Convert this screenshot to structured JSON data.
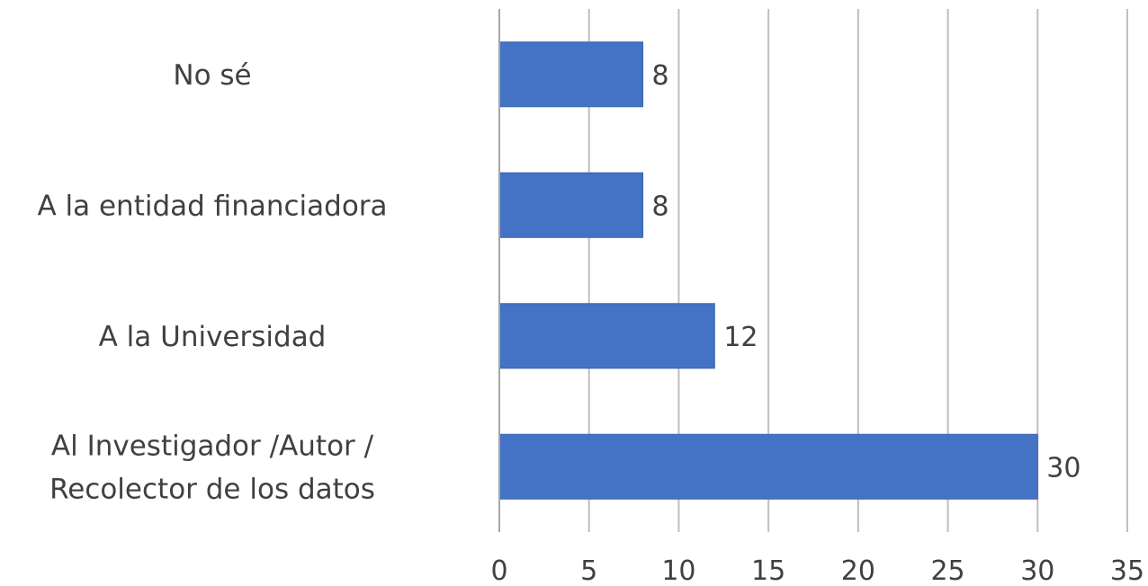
{
  "chart_data": {
    "type": "bar",
    "orientation": "horizontal",
    "categories": [
      [
        "No sé"
      ],
      [
        "A la entidad financiadora"
      ],
      [
        "A la Universidad"
      ],
      [
        "Al Investigador /Autor /",
        "Recolector de los datos"
      ]
    ],
    "values": [
      8,
      8,
      12,
      30
    ],
    "data_labels": [
      "8",
      "8",
      "12",
      "30"
    ],
    "xlim": [
      0,
      35
    ],
    "x_ticks": [
      0,
      5,
      10,
      15,
      20,
      25,
      30,
      35
    ],
    "x_tick_labels": [
      "0",
      "5",
      "10",
      "15",
      "20",
      "25",
      "30",
      "35"
    ],
    "grid": true,
    "legend": "none",
    "bar_color": "#4472c4"
  }
}
